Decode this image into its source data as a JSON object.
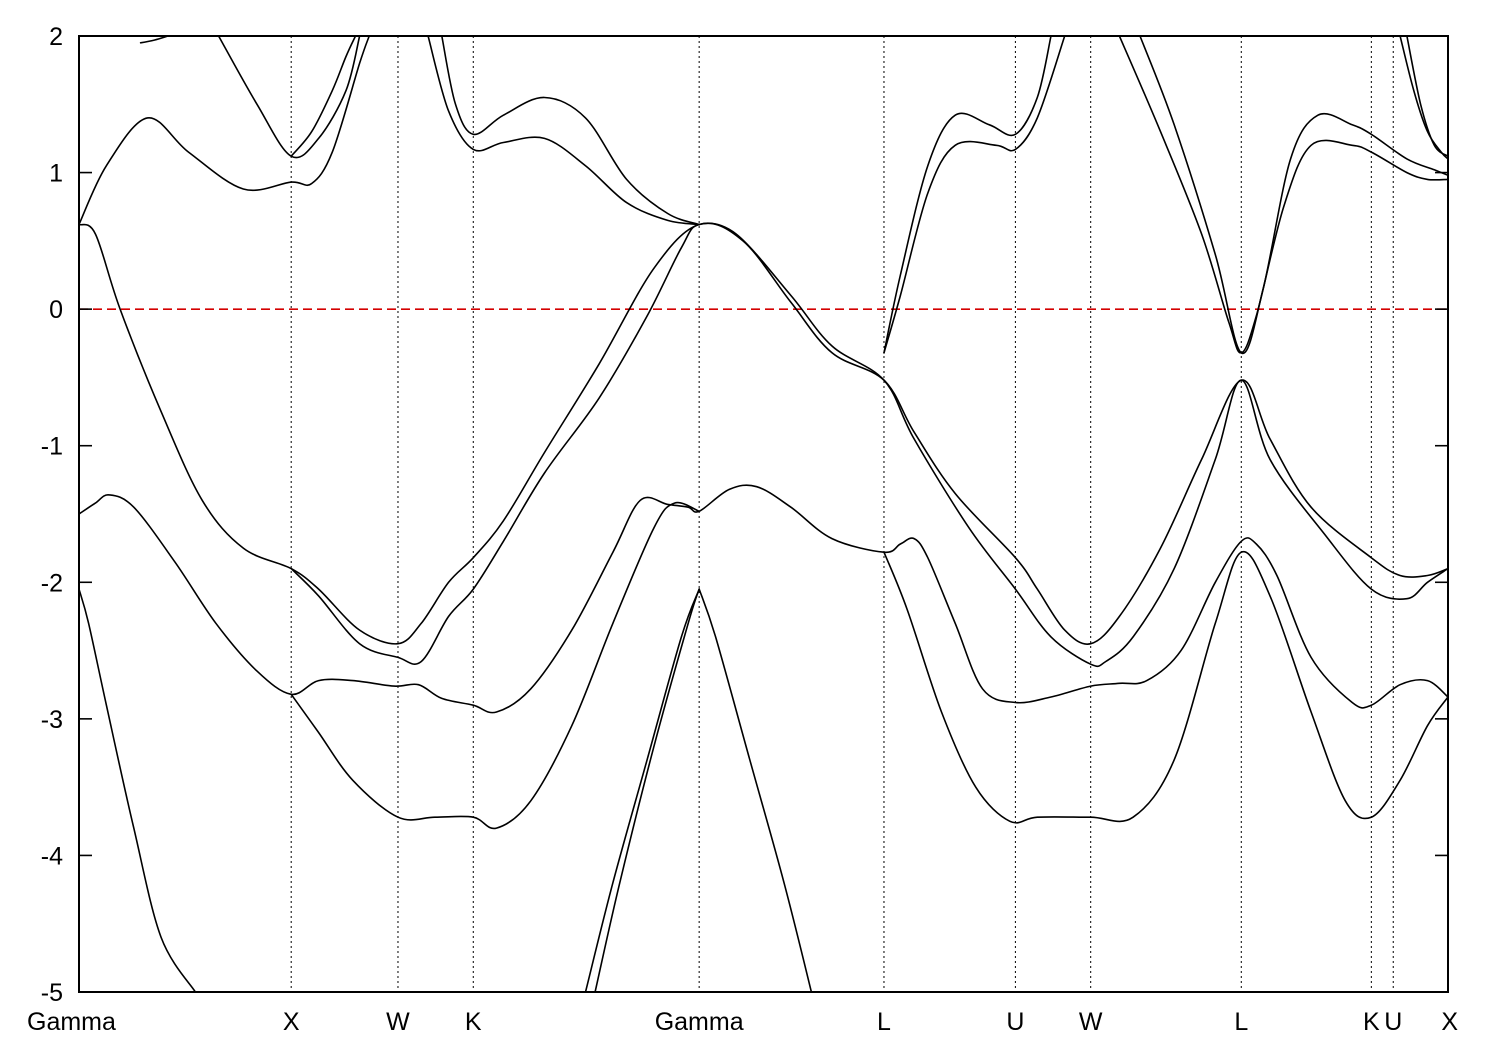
{
  "chart_data": {
    "type": "line",
    "title": "",
    "xlabel": "",
    "ylabel": "",
    "ylim": [
      -5,
      2
    ],
    "yticks": [
      -5,
      -4,
      -3,
      -2,
      -1,
      0,
      1,
      2
    ],
    "grid": false,
    "legend": "none",
    "kpath": {
      "xlim": [
        0,
        10
      ],
      "points": [
        {
          "label": "Gamma",
          "x": 0
        },
        {
          "label": "X",
          "x": 1.55
        },
        {
          "label": "W",
          "x": 2.33
        },
        {
          "label": "K",
          "x": 2.88
        },
        {
          "label": "Gamma",
          "x": 4.53
        },
        {
          "label": "L",
          "x": 5.88
        },
        {
          "label": "U",
          "x": 6.84
        },
        {
          "label": "W",
          "x": 7.39
        },
        {
          "label": "L",
          "x": 8.49
        },
        {
          "label": "K",
          "x": 9.44
        },
        {
          "label": "U",
          "x": 9.6
        },
        {
          "label": "X",
          "x": 10
        }
      ]
    },
    "reference_line": {
      "y": 0,
      "color": "#d40000",
      "style": "dashed"
    },
    "colors": {
      "bands": "#000000",
      "fermi": "#d40000"
    },
    "series": [
      {
        "values": [
          [
            0,
            -2.05
          ],
          [
            0.07,
            -2.3
          ],
          [
            0.2,
            -2.9
          ],
          [
            0.4,
            -3.8
          ],
          [
            0.6,
            -4.6
          ],
          [
            0.85,
            -5.0
          ]
        ]
      },
      {
        "values": [
          [
            0,
            -1.5
          ],
          [
            0.12,
            -1.42
          ],
          [
            0.22,
            -1.36
          ],
          [
            0.4,
            -1.45
          ],
          [
            0.7,
            -1.85
          ],
          [
            1.0,
            -2.3
          ],
          [
            1.3,
            -2.65
          ],
          [
            1.55,
            -2.82
          ],
          [
            1.75,
            -2.72
          ],
          [
            2.0,
            -2.72
          ],
          [
            2.3,
            -2.76
          ],
          [
            2.48,
            -2.75
          ],
          [
            2.65,
            -2.85
          ],
          [
            2.88,
            -2.9
          ],
          [
            3.05,
            -2.95
          ],
          [
            3.3,
            -2.78
          ],
          [
            3.6,
            -2.35
          ],
          [
            3.9,
            -1.78
          ],
          [
            4.1,
            -1.4
          ],
          [
            4.3,
            -1.43
          ],
          [
            4.45,
            -1.45
          ],
          [
            4.53,
            -1.48
          ],
          [
            4.75,
            -1.32
          ],
          [
            4.95,
            -1.3
          ],
          [
            5.2,
            -1.45
          ],
          [
            5.5,
            -1.68
          ],
          [
            5.88,
            -1.78
          ],
          [
            6.0,
            -1.72
          ],
          [
            6.1,
            -1.68
          ],
          [
            6.2,
            -1.82
          ],
          [
            6.4,
            -2.3
          ],
          [
            6.6,
            -2.78
          ],
          [
            6.84,
            -2.88
          ],
          [
            7.1,
            -2.84
          ],
          [
            7.39,
            -2.76
          ],
          [
            7.6,
            -2.74
          ],
          [
            7.8,
            -2.72
          ],
          [
            8.05,
            -2.5
          ],
          [
            8.3,
            -2.0
          ],
          [
            8.49,
            -1.7
          ],
          [
            8.6,
            -1.72
          ],
          [
            8.75,
            -1.95
          ],
          [
            9.0,
            -2.55
          ],
          [
            9.3,
            -2.88
          ],
          [
            9.44,
            -2.9
          ],
          [
            9.65,
            -2.75
          ],
          [
            9.85,
            -2.72
          ],
          [
            10,
            -2.84
          ]
        ]
      },
      {
        "values": [
          [
            1.55,
            -2.82
          ],
          [
            1.75,
            -3.1
          ],
          [
            2.0,
            -3.45
          ],
          [
            2.33,
            -3.72
          ],
          [
            2.6,
            -3.72
          ],
          [
            2.88,
            -3.72
          ],
          [
            3.05,
            -3.8
          ],
          [
            3.3,
            -3.6
          ],
          [
            3.6,
            -3.05
          ],
          [
            3.9,
            -2.3
          ],
          [
            4.2,
            -1.6
          ],
          [
            4.35,
            -1.42
          ],
          [
            4.53,
            -1.48
          ]
        ]
      },
      {
        "values": [
          [
            5.88,
            -1.78
          ],
          [
            6.05,
            -2.2
          ],
          [
            6.3,
            -2.95
          ],
          [
            6.55,
            -3.5
          ],
          [
            6.8,
            -3.75
          ],
          [
            7.0,
            -3.72
          ],
          [
            7.39,
            -3.72
          ],
          [
            7.7,
            -3.72
          ],
          [
            8.0,
            -3.3
          ],
          [
            8.3,
            -2.3
          ],
          [
            8.49,
            -1.78
          ],
          [
            8.7,
            -2.1
          ],
          [
            9.0,
            -2.95
          ],
          [
            9.25,
            -3.6
          ],
          [
            9.44,
            -3.72
          ],
          [
            9.65,
            -3.45
          ],
          [
            9.85,
            -3.05
          ],
          [
            10,
            -2.84
          ]
        ]
      },
      {
        "values": [
          [
            0,
            0.62
          ],
          [
            0.12,
            0.55
          ],
          [
            0.3,
            0.0
          ],
          [
            0.6,
            -0.75
          ],
          [
            0.9,
            -1.4
          ],
          [
            1.2,
            -1.75
          ],
          [
            1.55,
            -1.9
          ],
          [
            1.75,
            -2.05
          ],
          [
            2.05,
            -2.35
          ],
          [
            2.33,
            -2.45
          ],
          [
            2.5,
            -2.3
          ],
          [
            2.7,
            -2.0
          ],
          [
            2.88,
            -1.82
          ],
          [
            3.1,
            -1.55
          ],
          [
            3.4,
            -1.05
          ],
          [
            3.8,
            -0.4
          ],
          [
            4.2,
            0.3
          ],
          [
            4.53,
            0.62
          ],
          [
            4.85,
            0.5
          ],
          [
            5.2,
            0.05
          ],
          [
            5.5,
            -0.32
          ],
          [
            5.88,
            -0.52
          ],
          [
            6.1,
            -0.9
          ],
          [
            6.4,
            -1.35
          ],
          [
            6.84,
            -1.82
          ],
          [
            7.0,
            -2.05
          ],
          [
            7.2,
            -2.35
          ],
          [
            7.39,
            -2.45
          ],
          [
            7.6,
            -2.25
          ],
          [
            7.9,
            -1.75
          ],
          [
            8.2,
            -1.1
          ],
          [
            8.49,
            -0.52
          ],
          [
            8.7,
            -0.95
          ],
          [
            9.0,
            -1.45
          ],
          [
            9.44,
            -1.82
          ],
          [
            9.65,
            -1.95
          ],
          [
            9.85,
            -1.95
          ],
          [
            10,
            -1.9
          ]
        ]
      },
      {
        "values": [
          [
            1.55,
            -1.9
          ],
          [
            1.75,
            -2.1
          ],
          [
            2.05,
            -2.45
          ],
          [
            2.33,
            -2.55
          ],
          [
            2.5,
            -2.58
          ],
          [
            2.7,
            -2.25
          ],
          [
            2.88,
            -2.05
          ],
          [
            3.1,
            -1.7
          ],
          [
            3.4,
            -1.2
          ],
          [
            3.8,
            -0.65
          ],
          [
            4.15,
            -0.05
          ],
          [
            4.4,
            0.45
          ],
          [
            4.53,
            0.62
          ],
          [
            4.8,
            0.55
          ],
          [
            5.2,
            0.1
          ],
          [
            5.5,
            -0.27
          ],
          [
            5.88,
            -0.52
          ],
          [
            6.1,
            -0.95
          ],
          [
            6.5,
            -1.6
          ],
          [
            6.84,
            -2.05
          ],
          [
            7.1,
            -2.4
          ],
          [
            7.39,
            -2.6
          ],
          [
            7.5,
            -2.58
          ],
          [
            7.7,
            -2.4
          ],
          [
            8.0,
            -1.9
          ],
          [
            8.3,
            -1.1
          ],
          [
            8.49,
            -0.52
          ],
          [
            8.7,
            -1.1
          ],
          [
            9.1,
            -1.65
          ],
          [
            9.44,
            -2.05
          ],
          [
            9.7,
            -2.12
          ],
          [
            9.85,
            -2.0
          ],
          [
            10,
            -1.9
          ]
        ]
      },
      {
        "values": [
          [
            4.53,
            -2.05
          ],
          [
            4.4,
            -2.4
          ],
          [
            4.15,
            -3.3
          ],
          [
            3.9,
            -4.2
          ],
          [
            3.7,
            -5.0
          ]
        ]
      },
      {
        "values": [
          [
            4.53,
            -2.05
          ],
          [
            4.45,
            -2.3
          ],
          [
            4.2,
            -3.2
          ],
          [
            3.95,
            -4.2
          ],
          [
            3.77,
            -5.0
          ]
        ]
      },
      {
        "values": [
          [
            4.53,
            -2.05
          ],
          [
            4.65,
            -2.4
          ],
          [
            4.9,
            -3.3
          ],
          [
            5.15,
            -4.2
          ],
          [
            5.35,
            -5.0
          ]
        ]
      },
      {
        "values": [
          [
            0,
            0.62
          ],
          [
            0.2,
            1.05
          ],
          [
            0.5,
            1.4
          ],
          [
            0.8,
            1.15
          ],
          [
            1.2,
            0.88
          ],
          [
            1.55,
            0.93
          ],
          [
            1.7,
            0.92
          ],
          [
            1.85,
            1.15
          ],
          [
            2.05,
            1.8
          ],
          [
            2.12,
            2.0
          ]
        ]
      },
      {
        "values": [
          [
            1.02,
            2.0
          ],
          [
            1.3,
            1.5
          ],
          [
            1.55,
            1.12
          ],
          [
            1.75,
            1.25
          ],
          [
            1.95,
            1.6
          ],
          [
            2.05,
            2.0
          ]
        ]
      },
      {
        "values": [
          [
            0.45,
            1.95
          ],
          [
            0.55,
            1.97
          ],
          [
            0.65,
            2.0
          ]
        ]
      },
      {
        "values": [
          [
            1.55,
            1.12
          ],
          [
            1.7,
            1.3
          ],
          [
            1.85,
            1.6
          ],
          [
            1.95,
            1.85
          ],
          [
            2.02,
            2.0
          ]
        ]
      },
      {
        "values": [
          [
            2.55,
            2.0
          ],
          [
            2.7,
            1.45
          ],
          [
            2.88,
            1.17
          ],
          [
            3.1,
            1.22
          ],
          [
            3.4,
            1.25
          ],
          [
            3.7,
            1.05
          ],
          [
            4.0,
            0.78
          ],
          [
            4.3,
            0.65
          ],
          [
            4.53,
            0.62
          ]
        ]
      },
      {
        "values": [
          [
            2.65,
            2.0
          ],
          [
            2.75,
            1.5
          ],
          [
            2.88,
            1.28
          ],
          [
            3.1,
            1.42
          ],
          [
            3.4,
            1.55
          ],
          [
            3.7,
            1.4
          ],
          [
            4.0,
            0.95
          ],
          [
            4.3,
            0.7
          ],
          [
            4.53,
            0.62
          ]
        ]
      },
      {
        "values": [
          [
            5.88,
            -0.32
          ],
          [
            6.0,
            0.1
          ],
          [
            6.2,
            0.85
          ],
          [
            6.4,
            1.2
          ],
          [
            6.7,
            1.2
          ],
          [
            6.84,
            1.17
          ],
          [
            7.0,
            1.4
          ],
          [
            7.2,
            2.0
          ]
        ]
      },
      {
        "values": [
          [
            5.88,
            -0.32
          ],
          [
            6.0,
            0.25
          ],
          [
            6.2,
            1.05
          ],
          [
            6.4,
            1.42
          ],
          [
            6.65,
            1.35
          ],
          [
            6.84,
            1.28
          ],
          [
            7.0,
            1.55
          ],
          [
            7.1,
            2.0
          ]
        ]
      },
      {
        "values": [
          [
            7.6,
            2.0
          ],
          [
            7.9,
            1.3
          ],
          [
            8.2,
            0.55
          ],
          [
            8.4,
            -0.1
          ],
          [
            8.49,
            -0.32
          ],
          [
            8.6,
            -0.05
          ],
          [
            8.8,
            0.75
          ],
          [
            9.0,
            1.2
          ],
          [
            9.3,
            1.2
          ],
          [
            9.44,
            1.15
          ],
          [
            9.7,
            1.0
          ],
          [
            9.85,
            0.95
          ],
          [
            10,
            0.95
          ]
        ]
      },
      {
        "values": [
          [
            7.75,
            2.0
          ],
          [
            8.0,
            1.35
          ],
          [
            8.3,
            0.4
          ],
          [
            8.49,
            -0.32
          ],
          [
            8.65,
            0.15
          ],
          [
            8.85,
            1.1
          ],
          [
            9.05,
            1.42
          ],
          [
            9.3,
            1.35
          ],
          [
            9.44,
            1.28
          ],
          [
            9.7,
            1.1
          ],
          [
            9.9,
            1.02
          ],
          [
            10,
            0.98
          ]
        ]
      },
      {
        "values": [
          [
            9.65,
            2.0
          ],
          [
            9.75,
            1.6
          ],
          [
            9.85,
            1.3
          ],
          [
            9.95,
            1.15
          ],
          [
            10,
            1.1
          ]
        ]
      },
      {
        "values": [
          [
            9.7,
            2.0
          ],
          [
            9.8,
            1.5
          ],
          [
            9.9,
            1.2
          ],
          [
            10,
            1.12
          ]
        ]
      }
    ]
  }
}
